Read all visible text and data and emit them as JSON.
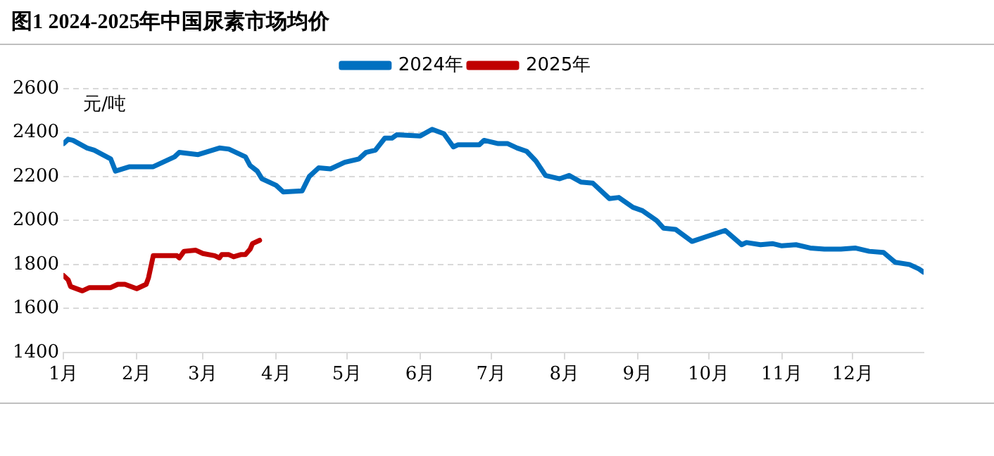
{
  "chart_data": {
    "type": "line",
    "title": "图1 2024-2025年中国尿素市场均价",
    "ylabel": "元/吨",
    "xlim": [
      "--01-01",
      "--12-31"
    ],
    "xticks": [
      {
        "value": "--01-01",
        "label": "1月"
      },
      {
        "value": "--02-01",
        "label": "2月"
      },
      {
        "value": "--03-01",
        "label": "3月"
      },
      {
        "value": "--04-01",
        "label": "4月"
      },
      {
        "value": "--05-01",
        "label": "5月"
      },
      {
        "value": "--06-01",
        "label": "6月"
      },
      {
        "value": "--07-01",
        "label": "7月"
      },
      {
        "value": "--08-01",
        "label": "8月"
      },
      {
        "value": "--09-01",
        "label": "9月"
      },
      {
        "value": "--10-01",
        "label": "10月"
      },
      {
        "value": "--11-01",
        "label": "11月"
      },
      {
        "value": "--12-01",
        "label": "12月"
      }
    ],
    "ylim": [
      1400,
      2600
    ],
    "yticks": [
      1400,
      1600,
      1800,
      2000,
      2200,
      2400,
      2600
    ],
    "grid": "y",
    "legend": "top",
    "marker": "none",
    "line_style": "solid",
    "series": [
      {
        "name": "2024年",
        "color": "#0070c0",
        "x": [
          "--01-01",
          "--01-03",
          "--01-05",
          "--01-11",
          "--01-14",
          "--01-21",
          "--01-23",
          "--01-29",
          "--02-08",
          "--02-17",
          "--02-19",
          "--02-27",
          "--03-08",
          "--03-12",
          "--03-19",
          "--03-21",
          "--03-24",
          "--03-26",
          "--04-01",
          "--04-04",
          "--04-12",
          "--04-15",
          "--04-19",
          "--04-24",
          "--04-30",
          "--05-06",
          "--05-09",
          "--05-13",
          "--05-17",
          "--05-20",
          "--05-22",
          "--06-01",
          "--06-06",
          "--06-11",
          "--06-15",
          "--06-17",
          "--06-26",
          "--06-28",
          "--07-04",
          "--07-08",
          "--07-12",
          "--07-16",
          "--07-20",
          "--07-24",
          "--07-30",
          "--08-03",
          "--08-08",
          "--08-13",
          "--08-20",
          "--08-24",
          "--08-30",
          "--09-03",
          "--09-09",
          "--09-12",
          "--09-17",
          "--09-24",
          "--10-01",
          "--10-08",
          "--10-15",
          "--10-17",
          "--10-23",
          "--10-28",
          "--11-01",
          "--11-07",
          "--11-13",
          "--11-19",
          "--11-26",
          "--12-02",
          "--12-08",
          "--12-14",
          "--12-19",
          "--12-25",
          "--12-29",
          "--12-31"
        ],
        "values": [
          2350,
          2370,
          2365,
          2330,
          2320,
          2280,
          2225,
          2245,
          2245,
          2290,
          2310,
          2300,
          2330,
          2325,
          2290,
          2250,
          2225,
          2190,
          2160,
          2130,
          2135,
          2200,
          2240,
          2235,
          2265,
          2280,
          2310,
          2320,
          2375,
          2375,
          2390,
          2385,
          2415,
          2395,
          2335,
          2345,
          2345,
          2365,
          2350,
          2350,
          2330,
          2315,
          2270,
          2205,
          2190,
          2205,
          2175,
          2170,
          2100,
          2105,
          2060,
          2045,
          2000,
          1965,
          1960,
          1905,
          1930,
          1955,
          1890,
          1900,
          1890,
          1895,
          1885,
          1890,
          1875,
          1870,
          1870,
          1875,
          1860,
          1855,
          1810,
          1800,
          1780,
          1765
        ]
      },
      {
        "name": "2025年",
        "color": "#c00000",
        "x": [
          "--01-01",
          "--01-03",
          "--01-04",
          "--01-09",
          "--01-12",
          "--01-21",
          "--01-24",
          "--01-27",
          "--02-01",
          "--02-05",
          "--02-06",
          "--02-08",
          "--02-18",
          "--02-19",
          "--02-21",
          "--02-26",
          "--03-01",
          "--03-06",
          "--03-08",
          "--03-09",
          "--03-12",
          "--03-14",
          "--03-17",
          "--03-19",
          "--03-21",
          "--03-22",
          "--03-25"
        ],
        "values": [
          1750,
          1730,
          1700,
          1680,
          1695,
          1695,
          1710,
          1710,
          1690,
          1710,
          1740,
          1840,
          1840,
          1830,
          1860,
          1865,
          1850,
          1840,
          1830,
          1845,
          1845,
          1835,
          1845,
          1845,
          1870,
          1895,
          1910
        ]
      }
    ]
  }
}
